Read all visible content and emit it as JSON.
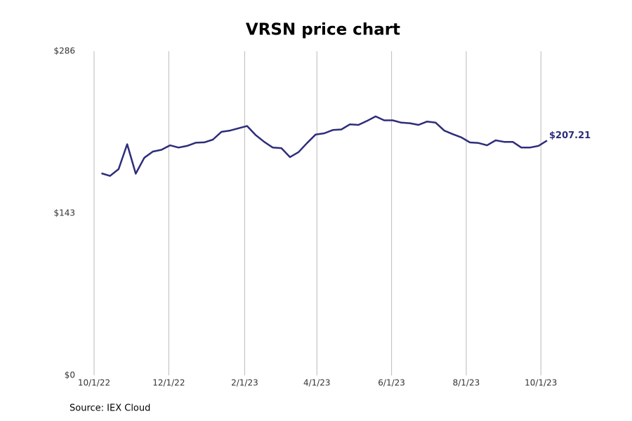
{
  "chart_data": {
    "type": "line",
    "title": "VRSN price chart",
    "source": "Source: IEX Cloud",
    "color": "#2e2d7a",
    "grid": true,
    "x": [
      "2022-10-07",
      "2022-10-14",
      "2022-10-21",
      "2022-10-28",
      "2022-11-04",
      "2022-11-11",
      "2022-11-18",
      "2022-11-25",
      "2022-12-02",
      "2022-12-09",
      "2022-12-16",
      "2022-12-23",
      "2022-12-30",
      "2023-01-06",
      "2023-01-13",
      "2023-01-20",
      "2023-01-27",
      "2023-02-03",
      "2023-02-10",
      "2023-02-17",
      "2023-02-24",
      "2023-03-03",
      "2023-03-10",
      "2023-03-17",
      "2023-03-24",
      "2023-03-31",
      "2023-04-07",
      "2023-04-14",
      "2023-04-21",
      "2023-04-28",
      "2023-05-05",
      "2023-05-12",
      "2023-05-19",
      "2023-05-26",
      "2023-06-02",
      "2023-06-09",
      "2023-06-16",
      "2023-06-23",
      "2023-06-30",
      "2023-07-07",
      "2023-07-14",
      "2023-07-21",
      "2023-07-28",
      "2023-08-04",
      "2023-08-11",
      "2023-08-18",
      "2023-08-25",
      "2023-09-01",
      "2023-09-08",
      "2023-09-15",
      "2023-09-22",
      "2023-09-29",
      "2023-10-06"
    ],
    "values": [
      178.3,
      176,
      182,
      204,
      178,
      192,
      197.5,
      199,
      203,
      201,
      202.5,
      205.3,
      205.6,
      208,
      214.9,
      216,
      218,
      220,
      212,
      206,
      201,
      200.5,
      192.6,
      197,
      205,
      212.5,
      213.6,
      216.5,
      217,
      221.5,
      221,
      224.5,
      228.5,
      225,
      225,
      223,
      222.5,
      221,
      224,
      223,
      216,
      212.8,
      210,
      205.5,
      205,
      203,
      207.4,
      206,
      206,
      201,
      201,
      202.5,
      207.21
    ],
    "value_labels": [
      null,
      null,
      null,
      null,
      null,
      null,
      null,
      null,
      null,
      null,
      null,
      null,
      null,
      null,
      null,
      null,
      null,
      null,
      null,
      null,
      null,
      null,
      null,
      null,
      null,
      null,
      null,
      null,
      null,
      null,
      null,
      null,
      null,
      null,
      null,
      null,
      null,
      null,
      null,
      null,
      null,
      null,
      null,
      null,
      null,
      null,
      null,
      null,
      null,
      null,
      null,
      null,
      "$207.21"
    ],
    "xlim": [
      "2022-10-01",
      "2023-11-10"
    ],
    "xticks": [
      {
        "value": "2022-10-01",
        "label": "10/1/22"
      },
      {
        "value": "2022-12-01",
        "label": "12/1/22"
      },
      {
        "value": "2023-02-01",
        "label": "2/1/23"
      },
      {
        "value": "2023-04-01",
        "label": "4/1/23"
      },
      {
        "value": "2023-06-01",
        "label": "6/1/23"
      },
      {
        "value": "2023-08-01",
        "label": "8/1/23"
      },
      {
        "value": "2023-10-01",
        "label": "10/1/23"
      }
    ],
    "ylim": [
      0,
      286
    ],
    "yticks": [
      {
        "value": 0,
        "label": "$0"
      },
      {
        "value": 143,
        "label": "$143"
      },
      {
        "value": 286,
        "label": "$286"
      }
    ]
  }
}
